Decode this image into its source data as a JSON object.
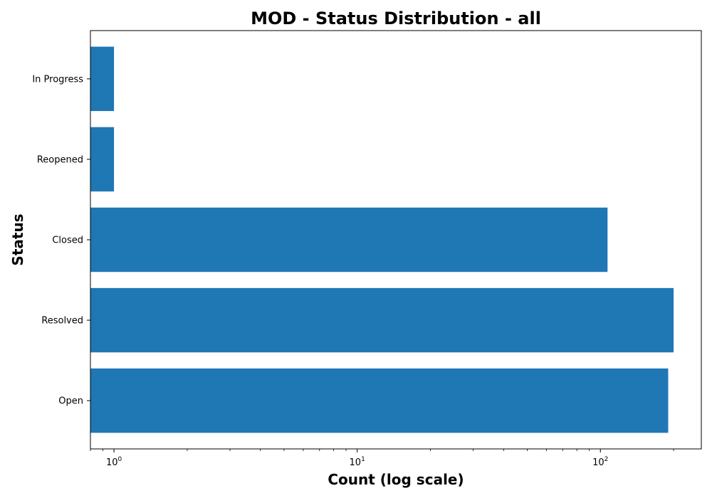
{
  "chart_data": {
    "type": "bar",
    "orientation": "horizontal",
    "title": "MOD - Status Distribution - all",
    "xlabel": "Count (log scale)",
    "ylabel": "Status",
    "x_scale": "log",
    "xlim": [
      0.8,
      260
    ],
    "categories": [
      "Open",
      "Resolved",
      "Closed",
      "Reopened",
      "In Progress"
    ],
    "values": [
      190,
      200,
      107,
      1,
      1
    ],
    "x_ticks": [
      {
        "base": "10",
        "exp": "0",
        "value": 1
      },
      {
        "base": "10",
        "exp": "1",
        "value": 10
      },
      {
        "base": "10",
        "exp": "2",
        "value": 100
      }
    ],
    "bar_color": "#1f77b4",
    "grid": false,
    "legend": "none"
  }
}
